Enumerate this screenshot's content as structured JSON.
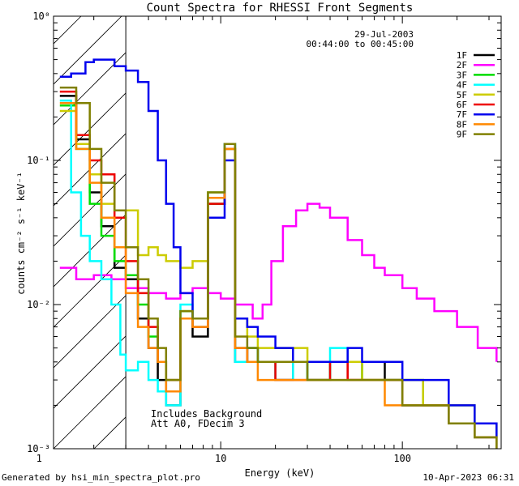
{
  "chart_data": {
    "type": "line",
    "title": "Count Spectra for RHESSI Front Segments",
    "xlabel": "Energy (keV)",
    "ylabel": "counts cm⁻² s⁻¹ keV⁻¹",
    "xscale": "log",
    "yscale": "log",
    "xlim": [
      1.2,
      350
    ],
    "ylim": [
      0.001,
      1
    ],
    "grid": false,
    "legend_position": "top-right",
    "x_ticks": [
      {
        "value": 1,
        "label": "1"
      },
      {
        "value": 10,
        "label": "10"
      },
      {
        "value": 100,
        "label": "100"
      }
    ],
    "y_ticks": [
      {
        "value": 1,
        "label": "10⁰"
      },
      {
        "value": 0.1,
        "label": "10⁻¹"
      },
      {
        "value": 0.01,
        "label": "10⁻²"
      },
      {
        "value": 0.001,
        "label": "10⁻³"
      }
    ],
    "date": "29-Jul-2003",
    "time_range": "00:44:00 to 00:45:00",
    "annotation_lines": [
      "Includes Background",
      "Att A0, FDecim 3"
    ],
    "hatched_region": [
      1.2,
      3.0
    ],
    "series": [
      {
        "name": "1F",
        "color": "#000000",
        "points": [
          [
            1.3,
            0.28
          ],
          [
            1.6,
            0.14
          ],
          [
            1.9,
            0.06
          ],
          [
            2.2,
            0.035
          ],
          [
            2.6,
            0.018
          ],
          [
            3.0,
            0.015
          ],
          [
            3.5,
            0.008
          ],
          [
            4.0,
            0.005
          ],
          [
            4.5,
            0.003
          ],
          [
            5.0,
            0.002
          ],
          [
            6.0,
            0.008
          ],
          [
            7.0,
            0.006
          ],
          [
            8.5,
            0.05
          ],
          [
            10.5,
            0.13
          ],
          [
            12,
            0.004
          ],
          [
            14,
            0.005
          ],
          [
            16,
            0.004
          ],
          [
            20,
            0.003
          ],
          [
            25,
            0.004
          ],
          [
            30,
            0.003
          ],
          [
            40,
            0.004
          ],
          [
            50,
            0.003
          ],
          [
            60,
            0.004
          ],
          [
            80,
            0.003
          ],
          [
            100,
            0.002
          ],
          [
            130,
            0.002
          ],
          [
            180,
            0.0015
          ],
          [
            250,
            0.0012
          ],
          [
            330,
            0.001
          ]
        ]
      },
      {
        "name": "2F",
        "color": "#ff00ff",
        "points": [
          [
            1.3,
            0.018
          ],
          [
            1.6,
            0.015
          ],
          [
            2.0,
            0.016
          ],
          [
            2.5,
            0.015
          ],
          [
            3.0,
            0.013
          ],
          [
            4.0,
            0.012
          ],
          [
            5.0,
            0.011
          ],
          [
            6.0,
            0.012
          ],
          [
            7.0,
            0.013
          ],
          [
            8.5,
            0.012
          ],
          [
            10,
            0.011
          ],
          [
            12,
            0.01
          ],
          [
            15,
            0.008
          ],
          [
            17,
            0.01
          ],
          [
            19,
            0.02
          ],
          [
            22,
            0.035
          ],
          [
            26,
            0.045
          ],
          [
            30,
            0.05
          ],
          [
            35,
            0.047
          ],
          [
            40,
            0.04
          ],
          [
            50,
            0.028
          ],
          [
            60,
            0.022
          ],
          [
            70,
            0.018
          ],
          [
            80,
            0.016
          ],
          [
            100,
            0.013
          ],
          [
            120,
            0.011
          ],
          [
            150,
            0.009
          ],
          [
            200,
            0.007
          ],
          [
            260,
            0.005
          ],
          [
            330,
            0.004
          ]
        ]
      },
      {
        "name": "3F",
        "color": "#00dd00",
        "points": [
          [
            1.3,
            0.24
          ],
          [
            1.6,
            0.12
          ],
          [
            1.9,
            0.05
          ],
          [
            2.2,
            0.03
          ],
          [
            2.6,
            0.02
          ],
          [
            3.0,
            0.016
          ],
          [
            3.5,
            0.01
          ],
          [
            4.0,
            0.006
          ],
          [
            4.5,
            0.004
          ],
          [
            5.0,
            0.003
          ],
          [
            6.0,
            0.009
          ],
          [
            7.0,
            0.008
          ],
          [
            8.5,
            0.05
          ],
          [
            10.5,
            0.12
          ],
          [
            12,
            0.005
          ],
          [
            14,
            0.005
          ],
          [
            16,
            0.004
          ],
          [
            20,
            0.004
          ],
          [
            25,
            0.004
          ],
          [
            30,
            0.003
          ],
          [
            40,
            0.004
          ],
          [
            50,
            0.004
          ],
          [
            60,
            0.003
          ],
          [
            80,
            0.003
          ],
          [
            100,
            0.003
          ],
          [
            130,
            0.002
          ],
          [
            180,
            0.002
          ],
          [
            250,
            0.0015
          ],
          [
            330,
            0.0012
          ]
        ]
      },
      {
        "name": "4F",
        "color": "#00ffff",
        "points": [
          [
            1.3,
            0.26
          ],
          [
            1.5,
            0.06
          ],
          [
            1.7,
            0.03
          ],
          [
            1.9,
            0.02
          ],
          [
            2.2,
            0.015
          ],
          [
            2.5,
            0.01
          ],
          [
            2.8,
            0.0045
          ],
          [
            3.0,
            0.0035
          ],
          [
            3.5,
            0.004
          ],
          [
            4.0,
            0.003
          ],
          [
            4.5,
            0.0025
          ],
          [
            5.0,
            0.002
          ],
          [
            6.0,
            0.01
          ],
          [
            7.0,
            0.007
          ],
          [
            8.5,
            0.06
          ],
          [
            10.5,
            0.13
          ],
          [
            12,
            0.004
          ],
          [
            14,
            0.005
          ],
          [
            16,
            0.004
          ],
          [
            20,
            0.003
          ],
          [
            25,
            0.004
          ],
          [
            30,
            0.003
          ],
          [
            40,
            0.005
          ],
          [
            50,
            0.004
          ],
          [
            60,
            0.003
          ],
          [
            80,
            0.003
          ],
          [
            100,
            0.002
          ],
          [
            130,
            0.002
          ],
          [
            180,
            0.0015
          ],
          [
            250,
            0.0012
          ],
          [
            330,
            0.001
          ]
        ]
      },
      {
        "name": "5F",
        "color": "#cccc00",
        "points": [
          [
            1.3,
            0.22
          ],
          [
            1.6,
            0.13
          ],
          [
            1.9,
            0.08
          ],
          [
            2.2,
            0.05
          ],
          [
            2.6,
            0.045
          ],
          [
            3.0,
            0.045
          ],
          [
            3.5,
            0.022
          ],
          [
            4.0,
            0.025
          ],
          [
            4.5,
            0.022
          ],
          [
            5.0,
            0.02
          ],
          [
            6.0,
            0.018
          ],
          [
            7.0,
            0.02
          ],
          [
            8.5,
            0.06
          ],
          [
            10.5,
            0.12
          ],
          [
            12,
            0.008
          ],
          [
            14,
            0.006
          ],
          [
            16,
            0.005
          ],
          [
            20,
            0.005
          ],
          [
            25,
            0.005
          ],
          [
            30,
            0.004
          ],
          [
            40,
            0.004
          ],
          [
            50,
            0.004
          ],
          [
            60,
            0.003
          ],
          [
            80,
            0.003
          ],
          [
            100,
            0.003
          ],
          [
            130,
            0.002
          ],
          [
            180,
            0.002
          ],
          [
            250,
            0.0015
          ],
          [
            330,
            0.0012
          ]
        ]
      },
      {
        "name": "6F",
        "color": "#ee0000",
        "points": [
          [
            1.3,
            0.3
          ],
          [
            1.6,
            0.15
          ],
          [
            1.9,
            0.1
          ],
          [
            2.2,
            0.08
          ],
          [
            2.6,
            0.04
          ],
          [
            3.0,
            0.02
          ],
          [
            3.5,
            0.012
          ],
          [
            4.0,
            0.007
          ],
          [
            4.5,
            0.004
          ],
          [
            5.0,
            0.003
          ],
          [
            6.0,
            0.008
          ],
          [
            7.0,
            0.007
          ],
          [
            8.5,
            0.05
          ],
          [
            10.5,
            0.12
          ],
          [
            12,
            0.005
          ],
          [
            14,
            0.004
          ],
          [
            16,
            0.004
          ],
          [
            20,
            0.003
          ],
          [
            25,
            0.003
          ],
          [
            30,
            0.003
          ],
          [
            40,
            0.004
          ],
          [
            50,
            0.003
          ],
          [
            60,
            0.003
          ],
          [
            80,
            0.003
          ],
          [
            100,
            0.002
          ],
          [
            130,
            0.002
          ],
          [
            180,
            0.0015
          ],
          [
            250,
            0.0012
          ],
          [
            330,
            0.001
          ]
        ]
      },
      {
        "name": "7F",
        "color": "#0000ee",
        "points": [
          [
            1.3,
            0.38
          ],
          [
            1.5,
            0.4
          ],
          [
            1.8,
            0.48
          ],
          [
            2.0,
            0.5
          ],
          [
            2.3,
            0.5
          ],
          [
            2.6,
            0.45
          ],
          [
            3.0,
            0.42
          ],
          [
            3.5,
            0.35
          ],
          [
            4.0,
            0.22
          ],
          [
            4.5,
            0.1
          ],
          [
            5.0,
            0.05
          ],
          [
            5.5,
            0.025
          ],
          [
            6.0,
            0.012
          ],
          [
            7.0,
            0.008
          ],
          [
            8.5,
            0.04
          ],
          [
            10.5,
            0.1
          ],
          [
            12,
            0.008
          ],
          [
            14,
            0.007
          ],
          [
            16,
            0.006
          ],
          [
            20,
            0.005
          ],
          [
            25,
            0.004
          ],
          [
            30,
            0.004
          ],
          [
            40,
            0.004
          ],
          [
            50,
            0.005
          ],
          [
            60,
            0.004
          ],
          [
            80,
            0.004
          ],
          [
            100,
            0.003
          ],
          [
            130,
            0.003
          ],
          [
            180,
            0.002
          ],
          [
            250,
            0.0015
          ],
          [
            330,
            0.0012
          ]
        ]
      },
      {
        "name": "8F",
        "color": "#ff8800",
        "points": [
          [
            1.3,
            0.25
          ],
          [
            1.6,
            0.12
          ],
          [
            1.9,
            0.07
          ],
          [
            2.2,
            0.04
          ],
          [
            2.6,
            0.025
          ],
          [
            3.0,
            0.012
          ],
          [
            3.5,
            0.007
          ],
          [
            4.0,
            0.005
          ],
          [
            4.5,
            0.004
          ],
          [
            5.0,
            0.0025
          ],
          [
            6.0,
            0.008
          ],
          [
            7.0,
            0.007
          ],
          [
            8.5,
            0.055
          ],
          [
            10.5,
            0.12
          ],
          [
            12,
            0.005
          ],
          [
            14,
            0.004
          ],
          [
            16,
            0.003
          ],
          [
            20,
            0.003
          ],
          [
            25,
            0.003
          ],
          [
            30,
            0.003
          ],
          [
            40,
            0.003
          ],
          [
            50,
            0.003
          ],
          [
            60,
            0.003
          ],
          [
            80,
            0.002
          ],
          [
            100,
            0.002
          ],
          [
            130,
            0.002
          ],
          [
            180,
            0.0015
          ],
          [
            250,
            0.0012
          ],
          [
            330,
            0.001
          ]
        ]
      },
      {
        "name": "9F",
        "color": "#808000",
        "points": [
          [
            1.3,
            0.32
          ],
          [
            1.6,
            0.25
          ],
          [
            1.9,
            0.12
          ],
          [
            2.2,
            0.07
          ],
          [
            2.6,
            0.045
          ],
          [
            3.0,
            0.025
          ],
          [
            3.5,
            0.015
          ],
          [
            4.0,
            0.008
          ],
          [
            4.5,
            0.005
          ],
          [
            5.0,
            0.003
          ],
          [
            6.0,
            0.009
          ],
          [
            7.0,
            0.008
          ],
          [
            8.5,
            0.06
          ],
          [
            10.5,
            0.13
          ],
          [
            12,
            0.006
          ],
          [
            14,
            0.005
          ],
          [
            16,
            0.004
          ],
          [
            20,
            0.004
          ],
          [
            25,
            0.004
          ],
          [
            30,
            0.003
          ],
          [
            40,
            0.003
          ],
          [
            50,
            0.003
          ],
          [
            60,
            0.003
          ],
          [
            80,
            0.003
          ],
          [
            100,
            0.002
          ],
          [
            130,
            0.002
          ],
          [
            180,
            0.0015
          ],
          [
            250,
            0.0012
          ],
          [
            330,
            0.001
          ]
        ]
      }
    ]
  },
  "footer": {
    "left": "Generated by hsi_min_spectra_plot.pro",
    "right": "10-Apr-2023 06:31"
  }
}
